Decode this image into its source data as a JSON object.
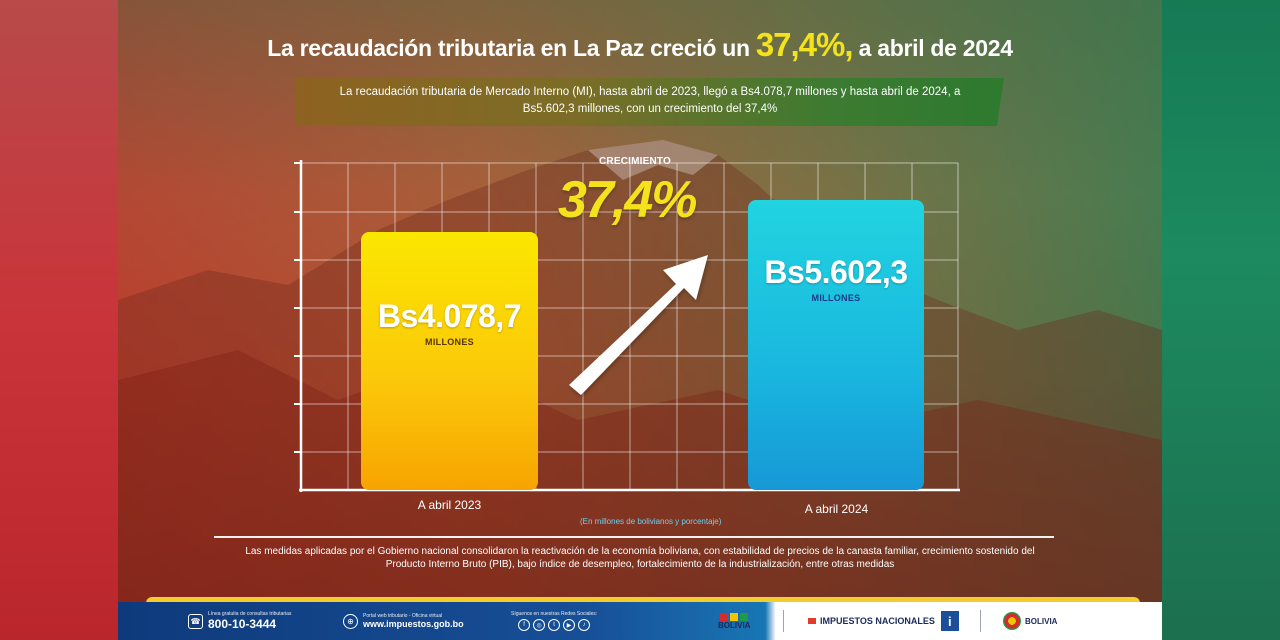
{
  "title": {
    "before": "La recaudación tributaria en La Paz creció un",
    "highlight": "37,4%,",
    "after": "a abril de 2024"
  },
  "summary": "La recaudación tributaria de Mercado Interno (MI), hasta abril de 2023, llegó a Bs4.078,7 millones y hasta abril de 2024, a Bs5.602,3 millones, con un crecimiento del 37,4%",
  "growth": {
    "label": "CRECIMIENTO",
    "value": "37,4%"
  },
  "chart_data": {
    "type": "bar",
    "categories": [
      "A abril 2023",
      "A abril 2024"
    ],
    "values": [
      4078.7,
      5602.3
    ],
    "value_labels": [
      "Bs4.078,7",
      "Bs5.602,3"
    ],
    "unit_label": "MILLONES",
    "note": "(En millones de bolivianos y porcentaje)",
    "growth_percent": 37.4,
    "grid": true,
    "colors": [
      "#fbd400",
      "#1fc4e0"
    ]
  },
  "footnote": "Las medidas aplicadas por el Gobierno nacional consolidaron la reactivación de la economía boliviana, con estabilidad de precios de la canasta familiar, crecimiento sostenido del Producto Interno Bruto (PIB), bajo índice de desempleo, fortalecimiento de la industrialización, entre otras medidas",
  "footer": {
    "phone_caption": "Línea gratuita de consultas tributarias",
    "phone": "800-10-3444",
    "web_caption": "Portal web tributario - Oficina virtual",
    "web": "www.impuestos.gob.bo",
    "social_caption": "Síguenos en nuestras Redes Sociales:",
    "social_icons": [
      "facebook-icon",
      "instagram-icon",
      "twitter-icon",
      "youtube-icon",
      "tiktok-icon"
    ],
    "logo_1": "BOLIVIA",
    "logo_2": "IMPUESTOS NACIONALES",
    "logo_3": "BOLIVIA"
  }
}
